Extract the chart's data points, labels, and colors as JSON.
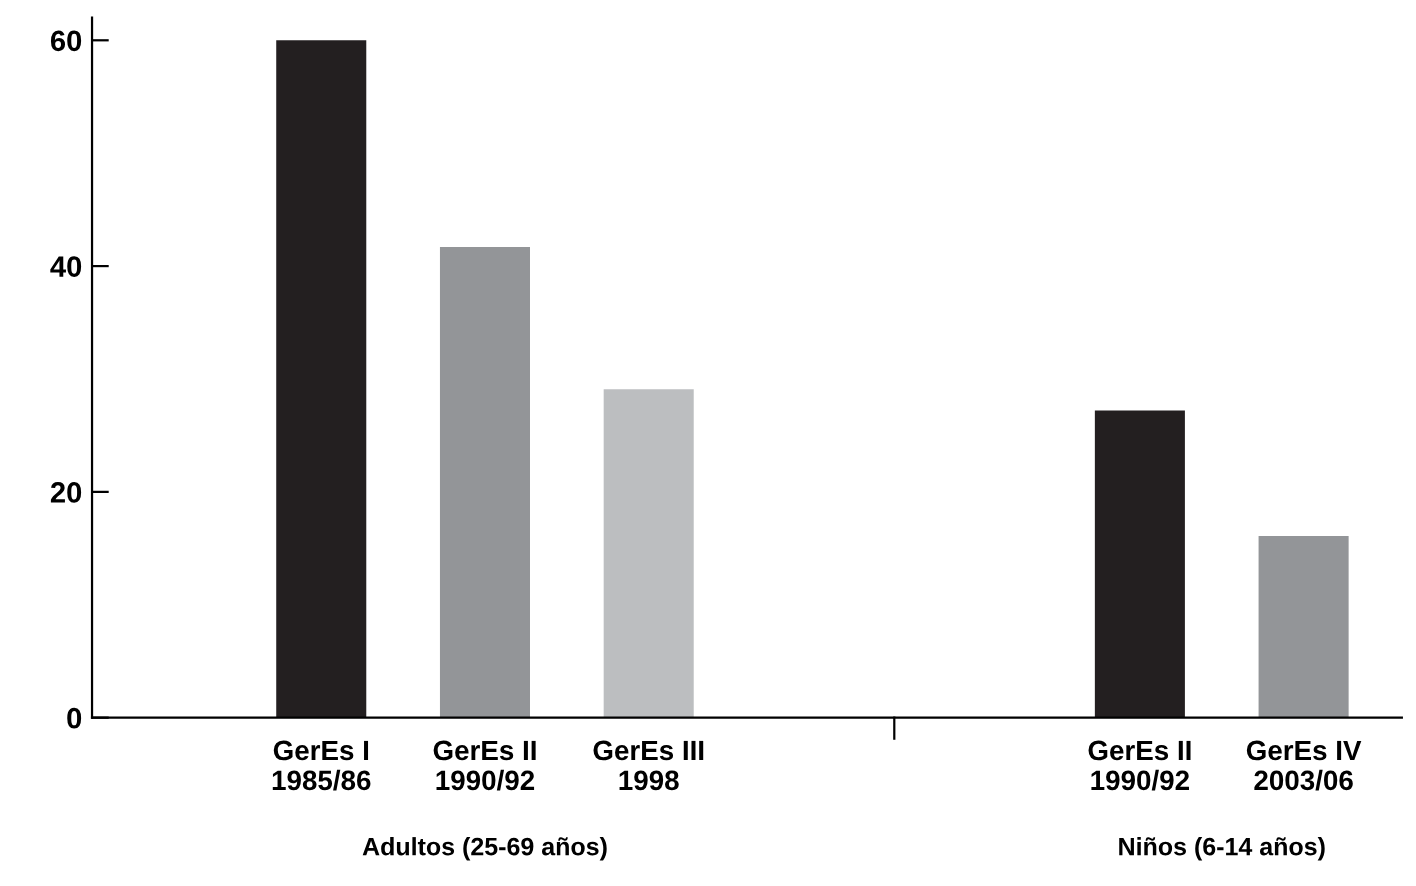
{
  "chart_data": {
    "type": "bar",
    "categories": [
      "GerEs I\n1985/86",
      "GerEs II\n1990/92",
      "GerEs III\n1998",
      null,
      null,
      "GerEs II\n1990/92",
      "GerEs IV\n2003/06"
    ],
    "values": [
      60,
      41.7,
      29.1,
      null,
      null,
      27.2,
      16.1
    ],
    "colors": [
      "#231f20",
      "#939598",
      "#bcbec0",
      null,
      null,
      "#231f20",
      "#939598"
    ],
    "ylim": [
      0,
      62
    ],
    "yticks": [
      0,
      20,
      40,
      60
    ],
    "grid": false,
    "annotations": [
      "Adultos (25-69 años)",
      "Niños (6-14 años)"
    ]
  }
}
